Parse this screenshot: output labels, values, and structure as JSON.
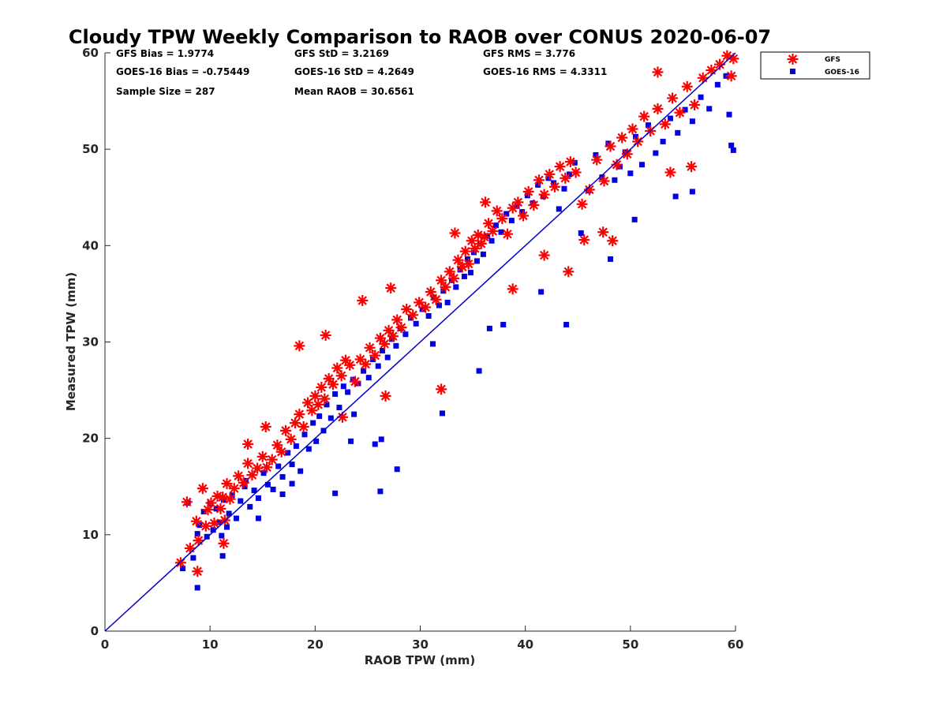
{
  "chart_data": {
    "type": "scatter",
    "title": "Cloudy TPW Weekly Comparison to RAOB over CONUS 2020-06-07",
    "xlabel": "RAOB TPW (mm)",
    "ylabel": "Measured TPW (mm)",
    "xlim": [
      0,
      60
    ],
    "ylim": [
      0,
      60
    ],
    "xticks": [
      0,
      10,
      20,
      30,
      40,
      50,
      60
    ],
    "yticks": [
      0,
      10,
      20,
      30,
      40,
      50,
      60
    ],
    "grid": false,
    "legend_position": "outside-top-right",
    "stats": [
      "GFS Bias = 1.9774",
      "GFS StD = 3.2169",
      "GFS RMS = 3.776",
      "GOES-16 Bias = -0.75449",
      "GOES-16 StD = 4.2649",
      "GOES-16 RMS = 4.3311",
      "Sample Size = 287",
      "Mean RAOB = 30.6561"
    ],
    "reference_line": {
      "name": "1:1 line",
      "x": [
        0,
        60
      ],
      "y": [
        0,
        60
      ],
      "color": "#0000cc"
    },
    "series": [
      {
        "name": "GFS",
        "marker": "asterisk",
        "color": "#ff0000",
        "x": [
          7.2,
          7.8,
          8.1,
          8.7,
          8.9,
          9.3,
          9.6,
          9.8,
          10.1,
          10.4,
          10.7,
          11.0,
          11.2,
          11.4,
          11.6,
          11.9,
          12.3,
          12.7,
          13.2,
          13.6,
          14.0,
          14.5,
          15.0,
          15.4,
          15.9,
          16.4,
          16.8,
          17.2,
          17.7,
          18.1,
          18.5,
          18.9,
          19.3,
          19.7,
          20.0,
          20.3,
          20.6,
          20.9,
          21.3,
          21.7,
          22.1,
          22.5,
          22.9,
          23.3,
          23.8,
          24.3,
          24.8,
          25.2,
          25.7,
          26.2,
          26.6,
          27.0,
          27.4,
          27.8,
          28.2,
          28.7,
          29.3,
          29.9,
          30.5,
          31.0,
          31.5,
          32.0,
          32.4,
          32.8,
          33.2,
          33.6,
          34.0,
          34.3,
          34.6,
          34.9,
          35.2,
          35.5,
          35.8,
          36.1,
          36.5,
          36.9,
          37.3,
          37.8,
          38.3,
          38.8,
          39.3,
          39.8,
          40.3,
          40.8,
          41.3,
          41.8,
          42.3,
          42.8,
          43.3,
          43.8,
          44.3,
          44.8,
          45.4,
          46.1,
          46.8,
          47.5,
          48.1,
          48.7,
          49.2,
          49.7,
          50.2,
          50.7,
          51.3,
          51.9,
          52.6,
          53.3,
          54.0,
          54.7,
          55.4,
          56.1,
          56.9,
          57.7,
          58.5,
          59.2,
          59.6,
          59.8,
          8.8,
          11.3,
          18.5,
          24.5,
          27.2,
          32.0,
          38.8,
          44.1,
          48.3,
          53.8,
          15.3,
          21.0,
          26.7,
          36.2,
          41.8,
          47.4,
          52.6,
          13.6,
          22.6,
          33.3,
          45.6,
          55.8
        ],
        "y": [
          7.1,
          13.4,
          8.6,
          11.4,
          9.4,
          14.8,
          10.9,
          12.6,
          13.3,
          11.2,
          14.0,
          12.7,
          13.9,
          11.5,
          15.3,
          13.7,
          14.8,
          16.1,
          15.4,
          17.4,
          16.2,
          16.9,
          18.1,
          17.0,
          17.8,
          19.3,
          18.6,
          20.8,
          19.9,
          21.6,
          22.5,
          21.2,
          23.7,
          22.9,
          24.4,
          23.5,
          25.3,
          24.1,
          26.2,
          25.6,
          27.3,
          26.5,
          28.1,
          27.6,
          25.9,
          28.2,
          27.7,
          29.4,
          28.6,
          30.4,
          29.8,
          31.2,
          30.6,
          32.3,
          31.5,
          33.4,
          32.8,
          34.1,
          33.6,
          35.2,
          34.4,
          36.4,
          35.7,
          37.3,
          36.6,
          38.5,
          37.8,
          39.4,
          38.1,
          40.5,
          39.7,
          41.1,
          40.2,
          40.9,
          42.3,
          41.5,
          43.6,
          42.8,
          41.2,
          43.9,
          44.5,
          43.1,
          45.6,
          44.2,
          46.8,
          45.3,
          47.4,
          46.1,
          48.2,
          47.0,
          48.7,
          47.6,
          44.3,
          45.8,
          48.9,
          46.7,
          50.3,
          48.4,
          51.2,
          49.5,
          52.1,
          50.8,
          53.4,
          51.9,
          54.2,
          52.6,
          55.3,
          53.8,
          56.5,
          54.6,
          57.4,
          58.2,
          58.8,
          59.7,
          57.6,
          59.4,
          6.2,
          9.1,
          29.6,
          34.3,
          35.6,
          25.1,
          35.5,
          37.3,
          40.5,
          47.6,
          21.2,
          30.7,
          24.4,
          44.5,
          39.0,
          41.4,
          58.0,
          19.4,
          22.2,
          41.3,
          40.6,
          48.2
        ]
      },
      {
        "name": "GOES-16",
        "marker": "square",
        "color": "#0000e6",
        "x": [
          7.4,
          7.9,
          8.4,
          8.8,
          9.0,
          9.4,
          9.7,
          10.0,
          10.3,
          10.6,
          10.9,
          11.1,
          11.3,
          11.6,
          11.8,
          12.1,
          12.5,
          12.9,
          13.3,
          13.8,
          14.2,
          14.6,
          15.1,
          15.5,
          16.0,
          16.5,
          16.9,
          17.4,
          17.8,
          18.2,
          18.6,
          19.0,
          19.4,
          19.8,
          20.1,
          20.4,
          20.8,
          21.1,
          21.5,
          21.9,
          22.3,
          22.7,
          23.1,
          23.6,
          24.1,
          24.6,
          25.1,
          25.5,
          26.0,
          26.4,
          26.9,
          27.3,
          27.7,
          28.1,
          28.6,
          29.1,
          29.6,
          30.2,
          30.8,
          31.3,
          31.8,
          32.2,
          32.6,
          33.0,
          33.4,
          33.8,
          34.2,
          34.5,
          34.8,
          35.1,
          35.4,
          35.7,
          36.0,
          36.4,
          36.8,
          37.2,
          37.7,
          38.2,
          38.7,
          39.2,
          39.7,
          40.2,
          40.7,
          41.2,
          41.7,
          42.2,
          42.7,
          43.2,
          43.7,
          44.2,
          44.7,
          45.3,
          46.0,
          46.7,
          47.3,
          47.9,
          48.5,
          49.0,
          49.5,
          50.0,
          50.5,
          51.1,
          51.7,
          52.4,
          53.1,
          53.8,
          54.5,
          55.2,
          55.9,
          56.7,
          57.5,
          58.3,
          59.1,
          59.4,
          59.6,
          59.8,
          8.8,
          11.2,
          13.4,
          14.6,
          16.9,
          17.8,
          21.9,
          23.4,
          25.7,
          26.2,
          27.8,
          32.1,
          35.6,
          37.9,
          43.9,
          48.1,
          54.3,
          23.7,
          26.3,
          31.2,
          36.6,
          41.5,
          50.4,
          55.9
        ],
        "y": [
          6.5,
          13.3,
          7.6,
          10.1,
          11.0,
          12.4,
          9.8,
          13.2,
          10.5,
          12.7,
          11.3,
          9.9,
          13.6,
          10.8,
          12.2,
          14.1,
          11.7,
          13.5,
          15.0,
          12.9,
          14.6,
          13.8,
          16.4,
          15.2,
          14.7,
          17.1,
          16.0,
          18.5,
          17.3,
          19.2,
          16.6,
          20.4,
          18.9,
          21.6,
          19.7,
          22.3,
          20.8,
          23.5,
          22.1,
          24.6,
          23.2,
          25.4,
          24.8,
          26.1,
          25.7,
          27.0,
          26.3,
          28.2,
          27.5,
          29.1,
          28.4,
          30.3,
          29.6,
          31.4,
          30.8,
          32.5,
          31.9,
          33.4,
          32.7,
          34.6,
          33.8,
          35.3,
          34.1,
          36.4,
          35.7,
          37.5,
          36.8,
          38.6,
          37.2,
          39.3,
          38.4,
          40.2,
          39.1,
          41.0,
          40.5,
          42.1,
          41.4,
          43.3,
          42.6,
          44.1,
          43.5,
          45.2,
          44.4,
          46.3,
          45.1,
          47.0,
          46.5,
          43.8,
          45.9,
          47.4,
          48.6,
          41.3,
          45.7,
          49.4,
          47.1,
          50.6,
          46.8,
          48.2,
          49.7,
          47.5,
          51.3,
          48.4,
          52.5,
          49.6,
          50.8,
          53.2,
          51.7,
          54.1,
          52.9,
          55.4,
          54.2,
          56.7,
          57.6,
          53.6,
          50.4,
          49.9,
          4.5,
          7.8,
          15.6,
          11.7,
          14.2,
          15.3,
          14.3,
          19.7,
          19.4,
          14.5,
          16.8,
          22.6,
          27.0,
          31.8,
          31.8,
          38.6,
          45.1,
          22.5,
          19.9,
          29.8,
          31.4,
          35.2,
          42.7,
          45.6
        ]
      }
    ]
  }
}
